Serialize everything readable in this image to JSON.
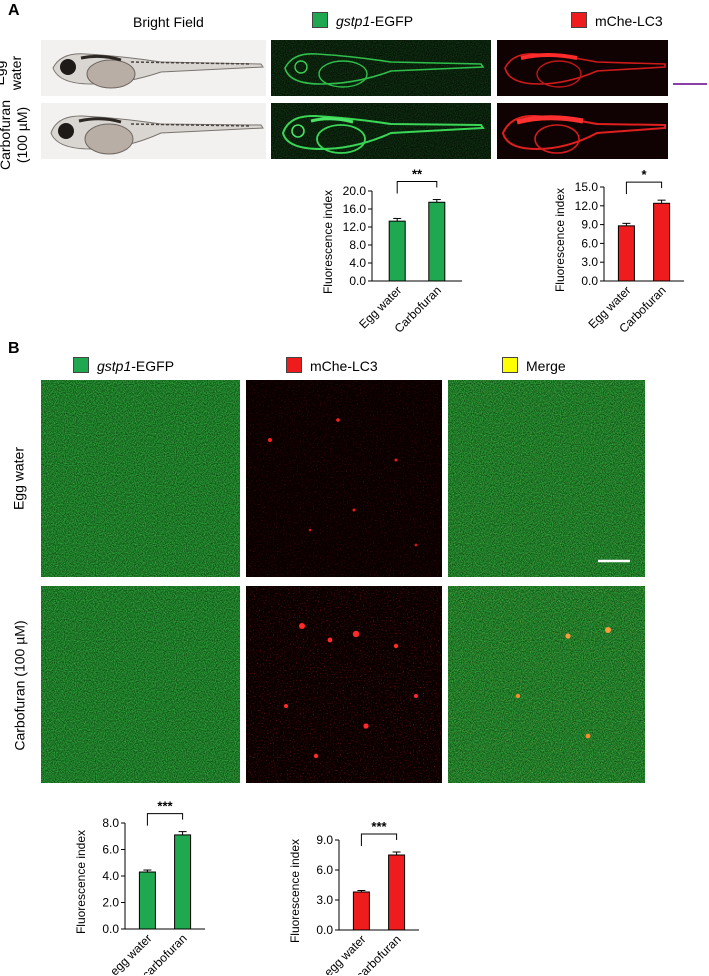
{
  "panel_a": {
    "letter": "A",
    "columns": {
      "bright_field": "Bright Field",
      "green_gene": "gstp1",
      "green_suffix": "-EGFP",
      "red_label": "mChe-LC3"
    },
    "rows": {
      "egg_water_line1": "Egg",
      "egg_water_line2": "water",
      "carbofuran_line1": "Carbofuran",
      "carbofuran_line2": "(100 µM)"
    }
  },
  "panel_b": {
    "letter": "B",
    "columns": {
      "green_gene": "gstp1",
      "green_suffix": "-EGFP",
      "red_label": "mChe-LC3",
      "merge_label": "Merge"
    },
    "rows": {
      "egg_water": "Egg water",
      "carbofuran": "Carbofuran (100 µM)"
    }
  },
  "colors": {
    "green": "#1fa84f",
    "red": "#ee1c1c",
    "yellow": "#ffff00",
    "purple_marker": "#8b3fa8"
  },
  "chart_data": [
    {
      "type": "bar",
      "id": "a-green",
      "categories": [
        "Egg water",
        "Carbofuran"
      ],
      "values": [
        13.3,
        17.5
      ],
      "errors": [
        0.6,
        0.6
      ],
      "ylabel": "Fluorescence index",
      "ylim": [
        0,
        20
      ],
      "yticks": [
        "0.0",
        "4.0",
        "8.0",
        "12.0",
        "16.0",
        "20.0"
      ],
      "significance": "**",
      "color": "#1fa84f"
    },
    {
      "type": "bar",
      "id": "a-red",
      "categories": [
        "Egg water",
        "Carbofuran"
      ],
      "values": [
        8.8,
        12.4
      ],
      "errors": [
        0.4,
        0.5
      ],
      "ylabel": "Fluorescence index",
      "ylim": [
        0,
        15
      ],
      "yticks": [
        "0.0",
        "3.0",
        "6.0",
        "9.0",
        "12.0",
        "15.0"
      ],
      "significance": "*",
      "color": "#ee1c1c"
    },
    {
      "type": "bar",
      "id": "b-green",
      "categories": [
        "egg water",
        "carbofuran"
      ],
      "values": [
        4.3,
        7.1
      ],
      "errors": [
        0.15,
        0.25
      ],
      "ylabel": "Fluorescence index",
      "ylim": [
        0,
        8
      ],
      "yticks": [
        "0.0",
        "2.0",
        "4.0",
        "6.0",
        "8.0"
      ],
      "significance": "***",
      "color": "#1fa84f"
    },
    {
      "type": "bar",
      "id": "b-red",
      "categories": [
        "egg water",
        "carbofuran"
      ],
      "values": [
        3.8,
        7.5
      ],
      "errors": [
        0.15,
        0.3
      ],
      "ylabel": "Fluorescence index",
      "ylim": [
        0,
        9
      ],
      "yticks": [
        "0.0",
        "3.0",
        "6.0",
        "9.0"
      ],
      "significance": "***",
      "color": "#ee1c1c"
    }
  ]
}
